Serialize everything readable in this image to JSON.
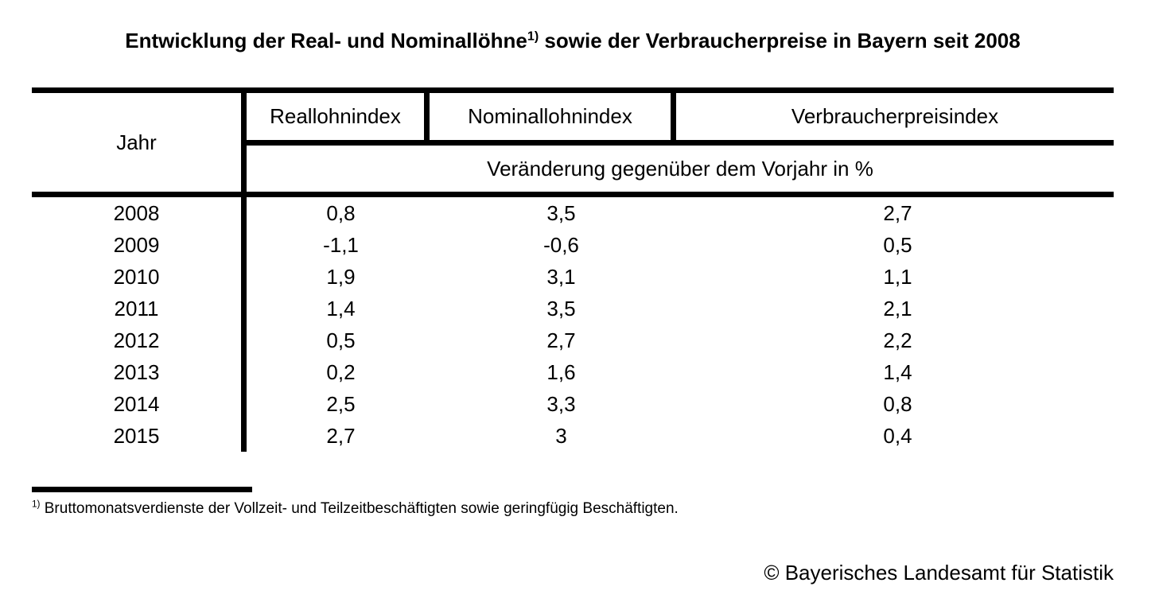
{
  "title": {
    "prefix": "Entwicklung der Real- und Nominallöhne",
    "footnote_marker": "1)",
    "suffix": " sowie der Verbraucherpreise in Bayern seit 2008"
  },
  "table": {
    "col_headers": {
      "jahr": "Jahr",
      "reallohn": "Reallohnindex",
      "nominallohn": "Nominallohnindex",
      "verbraucherpreis": "Verbraucherpreisindex"
    },
    "subheader": "Veränderung gegenüber dem Vorjahr in %",
    "rows": [
      {
        "jahr": "2008",
        "reallohn": "0,8",
        "nominallohn": "3,5",
        "verbraucherpreis": "2,7"
      },
      {
        "jahr": "2009",
        "reallohn": "-1,1",
        "nominallohn": "-0,6",
        "verbraucherpreis": "0,5"
      },
      {
        "jahr": "2010",
        "reallohn": "1,9",
        "nominallohn": "3,1",
        "verbraucherpreis": "1,1"
      },
      {
        "jahr": "2011",
        "reallohn": "1,4",
        "nominallohn": "3,5",
        "verbraucherpreis": "2,1"
      },
      {
        "jahr": "2012",
        "reallohn": "0,5",
        "nominallohn": "2,7",
        "verbraucherpreis": "2,2"
      },
      {
        "jahr": "2013",
        "reallohn": "0,2",
        "nominallohn": "1,6",
        "verbraucherpreis": "1,4"
      },
      {
        "jahr": "2014",
        "reallohn": "2,5",
        "nominallohn": "3,3",
        "verbraucherpreis": "0,8"
      },
      {
        "jahr": "2015",
        "reallohn": "2,7",
        "nominallohn": "3",
        "verbraucherpreis": "0,4"
      }
    ]
  },
  "footnote": {
    "marker": "1)",
    "text": "Bruttomonatsverdienste der Vollzeit- und Teilzeitbeschäftigten sowie geringfügig Beschäftigten."
  },
  "copyright": "© Bayerisches Landesamt für Statistik",
  "colors": {
    "text": "#000000",
    "background": "#ffffff",
    "line": "#000000"
  },
  "chart_data": {
    "type": "table",
    "title": "Entwicklung der Real- und Nominallöhne sowie der Verbraucherpreise in Bayern seit 2008",
    "unit": "Veränderung gegenüber dem Vorjahr in %",
    "categories": [
      2008,
      2009,
      2010,
      2011,
      2012,
      2013,
      2014,
      2015
    ],
    "series": [
      {
        "name": "Reallohnindex",
        "values": [
          0.8,
          -1.1,
          1.9,
          1.4,
          0.5,
          0.2,
          2.5,
          2.7
        ]
      },
      {
        "name": "Nominallohnindex",
        "values": [
          3.5,
          -0.6,
          3.1,
          3.5,
          2.7,
          1.6,
          3.3,
          3.0
        ]
      },
      {
        "name": "Verbraucherpreisindex",
        "values": [
          2.7,
          0.5,
          1.1,
          2.1,
          2.2,
          1.4,
          0.8,
          0.4
        ]
      }
    ]
  }
}
